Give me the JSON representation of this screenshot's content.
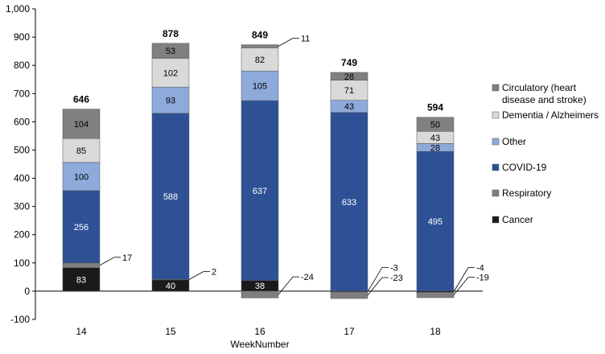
{
  "chart_data": {
    "type": "bar",
    "stacked": true,
    "xlabel": "WeekNumber",
    "ylabel": "",
    "title": "",
    "ylim": [
      -100,
      1000
    ],
    "yticks": [
      -100,
      0,
      100,
      200,
      300,
      400,
      500,
      600,
      700,
      800,
      900,
      1000
    ],
    "ytick_labels": [
      "-100",
      "0",
      "100",
      "200",
      "300",
      "400",
      "500",
      "600",
      "700",
      "800",
      "900",
      "1,000"
    ],
    "categories": [
      "14",
      "15",
      "16",
      "17",
      "18"
    ],
    "totals": [
      646,
      878,
      849,
      749,
      594
    ],
    "legend_position": "right",
    "series": [
      {
        "name": "Cancer",
        "color": "#1a1a1a",
        "label_color": "#ffffff",
        "values": [
          83,
          40,
          38,
          -3,
          -4
        ]
      },
      {
        "name": "Respiratory",
        "color": "#7f7f7f",
        "label_color": "#000000",
        "values": [
          17,
          2,
          -24,
          -23,
          -19
        ]
      },
      {
        "name": "COVID-19",
        "color": "#2e5196",
        "label_color": "#ffffff",
        "values": [
          256,
          588,
          637,
          633,
          495
        ]
      },
      {
        "name": "Other",
        "color": "#8eaadb",
        "label_color": "#000000",
        "values": [
          100,
          93,
          105,
          43,
          28
        ]
      },
      {
        "name": "Dementia / Alzheimers",
        "color": "#d9d9d9",
        "label_color": "#000000",
        "values": [
          85,
          102,
          82,
          71,
          43
        ]
      },
      {
        "name": "Circulatory (heart disease and stroke)",
        "color": "#808080",
        "label_color": "#000000",
        "values": [
          104,
          53,
          11,
          28,
          50
        ]
      }
    ],
    "legend_order": [
      "Circulatory (heart disease and stroke)",
      "Dementia / Alzheimers",
      "Other",
      "COVID-19",
      "Respiratory",
      "Cancer"
    ],
    "legend_lines": [
      [
        "Circulatory (heart",
        "disease and stroke)"
      ],
      [
        "Dementia / Alzheimers"
      ],
      [
        "Other"
      ],
      [
        "COVID-19"
      ],
      [
        "Respiratory"
      ],
      [
        "Cancer"
      ]
    ],
    "grid": false
  }
}
